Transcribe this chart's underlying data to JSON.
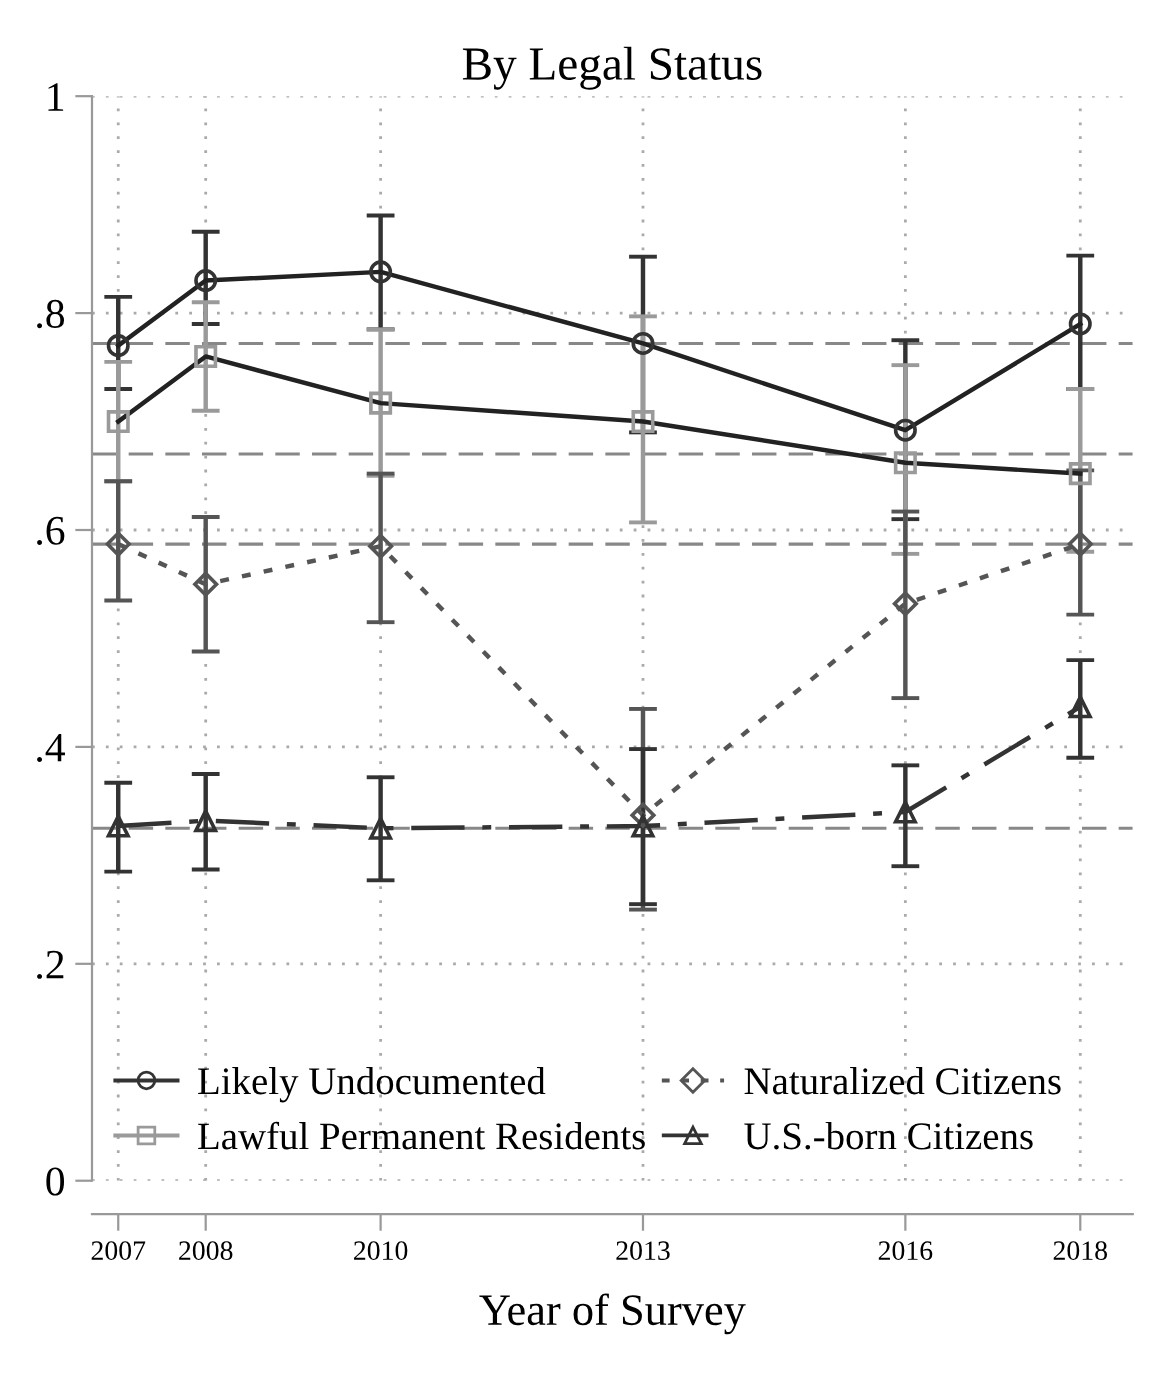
{
  "chart_data": {
    "type": "line",
    "title": "By Legal Status",
    "xlabel": "Year of Survey",
    "x": [
      2007,
      2008,
      2010,
      2013,
      2016,
      2018
    ],
    "xlim": [
      2006.7,
      2018.6
    ],
    "xticks": [
      2007,
      2008,
      2010,
      2013,
      2016,
      2018
    ],
    "ylim": [
      0,
      1
    ],
    "yticks": [
      {
        "value": 0,
        "label": "0"
      },
      {
        "value": 0.2,
        "label": ".2"
      },
      {
        "value": 0.4,
        "label": ".4"
      },
      {
        "value": 0.6,
        "label": ".6"
      },
      {
        "value": 0.8,
        "label": ".8"
      },
      {
        "value": 1,
        "label": "1"
      }
    ],
    "grid": true,
    "legend": "bottom",
    "series": [
      {
        "name": "Likely Undocumented",
        "color": "#333333",
        "marker": "circle",
        "line_style": "solid",
        "values": [
          0.77,
          0.83,
          0.838,
          0.772,
          0.692,
          0.79
        ],
        "errors": [
          [
            0.73,
            0.815
          ],
          [
            0.79,
            0.875
          ],
          [
            0.785,
            0.89
          ],
          [
            0.69,
            0.852
          ],
          [
            0.61,
            0.775
          ],
          [
            0.73,
            0.853
          ]
        ]
      },
      {
        "name": "Lawful Permanent Residents",
        "color": "#9a9a9a",
        "marker": "square",
        "line_style": "solid",
        "values": [
          0.7,
          0.76,
          0.717,
          0.7,
          0.662,
          0.652
        ],
        "errors": [
          [
            0.645,
            0.755
          ],
          [
            0.71,
            0.81
          ],
          [
            0.65,
            0.785
          ],
          [
            0.607,
            0.797
          ],
          [
            0.578,
            0.752
          ],
          [
            0.58,
            0.73
          ]
        ]
      },
      {
        "name": "Naturalized Citizens",
        "color": "#555555",
        "marker": "diamond",
        "line_style": "dotted",
        "values": [
          0.587,
          0.55,
          0.585,
          0.337,
          0.532,
          0.587
        ],
        "errors": [
          [
            0.535,
            0.645
          ],
          [
            0.488,
            0.612
          ],
          [
            0.515,
            0.652
          ],
          [
            0.25,
            0.435
          ],
          [
            0.445,
            0.617
          ],
          [
            0.522,
            0.655
          ]
        ]
      },
      {
        "name": "U.S.-born Citizens",
        "color": "#333333",
        "marker": "triangle",
        "line_style": "dashdot",
        "values": [
          0.327,
          0.332,
          0.325,
          0.327,
          0.34,
          0.437
        ],
        "errors": [
          [
            0.285,
            0.367
          ],
          [
            0.287,
            0.375
          ],
          [
            0.277,
            0.372
          ],
          [
            0.255,
            0.398
          ],
          [
            0.29,
            0.383
          ],
          [
            0.39,
            0.48
          ]
        ]
      }
    ],
    "ref_lines": [
      {
        "axis": "y",
        "value": 0.772,
        "color": "#888888",
        "line_style": "dashed"
      },
      {
        "axis": "y",
        "value": 0.67,
        "color": "#888888",
        "line_style": "dashed"
      },
      {
        "axis": "y",
        "value": 0.587,
        "color": "#888888",
        "line_style": "dashed"
      },
      {
        "axis": "y",
        "value": 0.325,
        "color": "#888888",
        "line_style": "dashed"
      }
    ]
  }
}
